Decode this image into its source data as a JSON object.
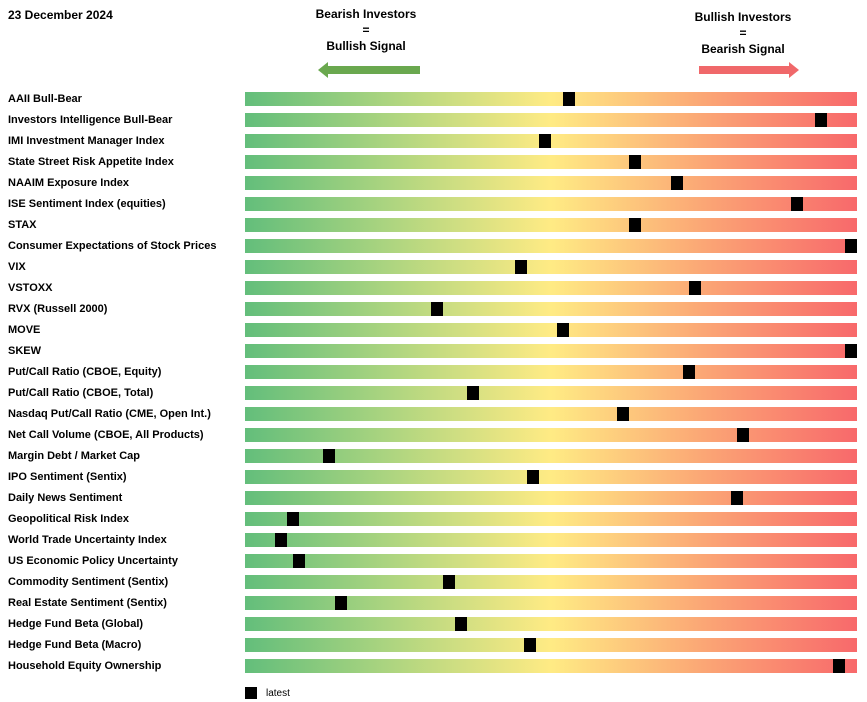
{
  "date": "23 December 2024",
  "signals": {
    "left": {
      "line1": "Bearish Investors",
      "line2": "=",
      "line3": "Bullish Signal",
      "color": "#6aa84f"
    },
    "right": {
      "line1": "Bullish Investors",
      "line2": "=",
      "line3": "Bearish Signal",
      "color": "#f0686a"
    }
  },
  "legend": {
    "label": "latest",
    "color": "#000000"
  },
  "chart_data": {
    "type": "heatmap",
    "colors": {
      "low": "#63be7b",
      "mid": "#ffeb84",
      "high": "#f8696b",
      "marker": "#000000"
    },
    "indicators": [
      {
        "label": "AAII Bull-Bear",
        "value": 0.529
      },
      {
        "label": "Investors Intelligence Bull-Bear",
        "value": 0.941
      },
      {
        "label": "IMI Investment Manager Index",
        "value": 0.49
      },
      {
        "label": "State Street Risk Appetite Index",
        "value": 0.637
      },
      {
        "label": "NAAIM Exposure Index",
        "value": 0.706
      },
      {
        "label": "ISE Sentiment Index (equities)",
        "value": 0.902
      },
      {
        "label": "STAX",
        "value": 0.637
      },
      {
        "label": "Consumer Expectations of Stock Prices",
        "value": 0.995
      },
      {
        "label": "VIX",
        "value": 0.451
      },
      {
        "label": "VSTOXX",
        "value": 0.735
      },
      {
        "label": "RVX (Russell 2000)",
        "value": 0.314
      },
      {
        "label": "MOVE",
        "value": 0.52
      },
      {
        "label": "SKEW",
        "value": 0.995
      },
      {
        "label": "Put/Call Ratio (CBOE, Equity)",
        "value": 0.725
      },
      {
        "label": "Put/Call Ratio (CBOE, Total)",
        "value": 0.373
      },
      {
        "label": "Nasdaq Put/Call Ratio (CME, Open Int.)",
        "value": 0.618
      },
      {
        "label": "Net Call Volume (CBOE, All Products)",
        "value": 0.814
      },
      {
        "label": "Margin Debt / Market Cap",
        "value": 0.137
      },
      {
        "label": "IPO Sentiment (Sentix)",
        "value": 0.471
      },
      {
        "label": "Daily News Sentiment",
        "value": 0.804
      },
      {
        "label": "Geopolitical Risk Index",
        "value": 0.078
      },
      {
        "label": "World Trade Uncertainty Index",
        "value": 0.059
      },
      {
        "label": "US Economic Policy Uncertainty",
        "value": 0.088
      },
      {
        "label": "Commodity Sentiment (Sentix)",
        "value": 0.333
      },
      {
        "label": "Real Estate Sentiment (Sentix)",
        "value": 0.157
      },
      {
        "label": "Hedge Fund Beta (Global)",
        "value": 0.353
      },
      {
        "label": "Hedge Fund Beta (Macro)",
        "value": 0.466
      },
      {
        "label": "Household Equity Ownership",
        "value": 0.971
      }
    ]
  }
}
